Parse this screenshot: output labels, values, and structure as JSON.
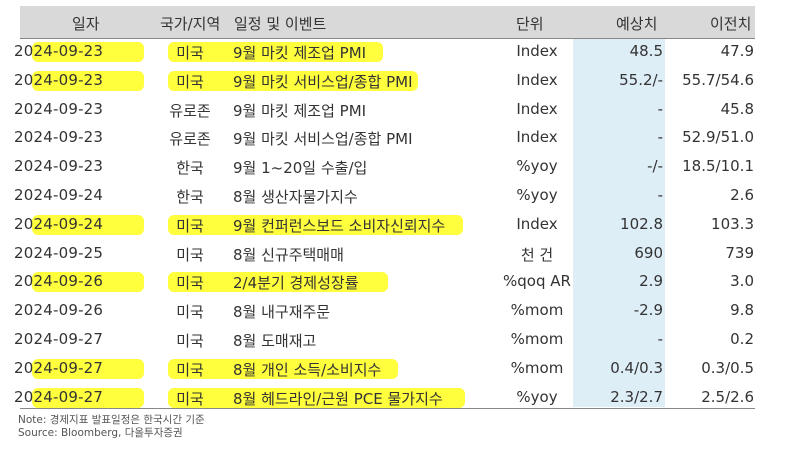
{
  "headers": {
    "date": "일자",
    "country": "국가/지역",
    "event": "일정 및 이벤트",
    "unit": "단위",
    "forecast": "예상치",
    "previous": "이전치"
  },
  "rows": [
    {
      "date": "2024-09-23",
      "country": "미국",
      "event": "9월 마킷 제조업 PMI",
      "unit": "Index",
      "forecast": "48.5",
      "previous": "47.9",
      "highlight": true
    },
    {
      "date": "2024-09-23",
      "country": "미국",
      "event": "9월 마킷 서비스업/종합 PMI",
      "unit": "Index",
      "forecast": "55.2/-",
      "previous": "55.7/54.6",
      "highlight": true
    },
    {
      "date": "2024-09-23",
      "country": "유로존",
      "event": "9월 마킷 제조업 PMI",
      "unit": "Index",
      "forecast": "-",
      "previous": "45.8",
      "highlight": false
    },
    {
      "date": "2024-09-23",
      "country": "유로존",
      "event": "9월 마킷 서비스업/종합 PMI",
      "unit": "Index",
      "forecast": "-",
      "previous": "52.9/51.0",
      "highlight": false
    },
    {
      "date": "2024-09-23",
      "country": "한국",
      "event": "9월 1~20일 수출/입",
      "unit": "%yoy",
      "forecast": "-/-",
      "previous": "18.5/10.1",
      "highlight": false
    },
    {
      "date": "2024-09-24",
      "country": "한국",
      "event": "8월 생산자물가지수",
      "unit": "%yoy",
      "forecast": "-",
      "previous": "2.6",
      "highlight": false
    },
    {
      "date": "2024-09-24",
      "country": "미국",
      "event": "9월 컨퍼런스보드 소비자신뢰지수",
      "unit": "Index",
      "forecast": "102.8",
      "previous": "103.3",
      "highlight": true
    },
    {
      "date": "2024-09-25",
      "country": "미국",
      "event": "8월 신규주택매매",
      "unit": "천 건",
      "forecast": "690",
      "previous": "739",
      "highlight": false
    },
    {
      "date": "2024-09-26",
      "country": "미국",
      "event": "2/4분기 경제성장률",
      "unit": "%qoq AR",
      "forecast": "2.9",
      "previous": "3.0",
      "highlight": true
    },
    {
      "date": "2024-09-26",
      "country": "미국",
      "event": "8월 내구재주문",
      "unit": "%mom",
      "forecast": "-2.9",
      "previous": "9.8",
      "highlight": false
    },
    {
      "date": "2024-09-27",
      "country": "미국",
      "event": "8월 도매재고",
      "unit": "%mom",
      "forecast": "-",
      "previous": "0.2",
      "highlight": false
    },
    {
      "date": "2024-09-27",
      "country": "미국",
      "event": "8월 개인 소득/소비지수",
      "unit": "%mom",
      "forecast": "0.4/0.3",
      "previous": "0.3/0.5",
      "highlight": true
    },
    {
      "date": "2024-09-27",
      "country": "미국",
      "event": "8월 헤드라인/근원 PCE 물가지수",
      "unit": "%yoy",
      "forecast": "2.3/2.7",
      "previous": "2.5/2.6",
      "highlight": true
    }
  ],
  "notes": {
    "note": "Note: 경제지표 발표일정은 한국시간 기준",
    "source": "Source: Bloomberg, 다올투자증권"
  },
  "colors": {
    "header_bg": "#d9d9d9",
    "forecast_shade": "#deeef7",
    "highlight": "#ffff33"
  }
}
